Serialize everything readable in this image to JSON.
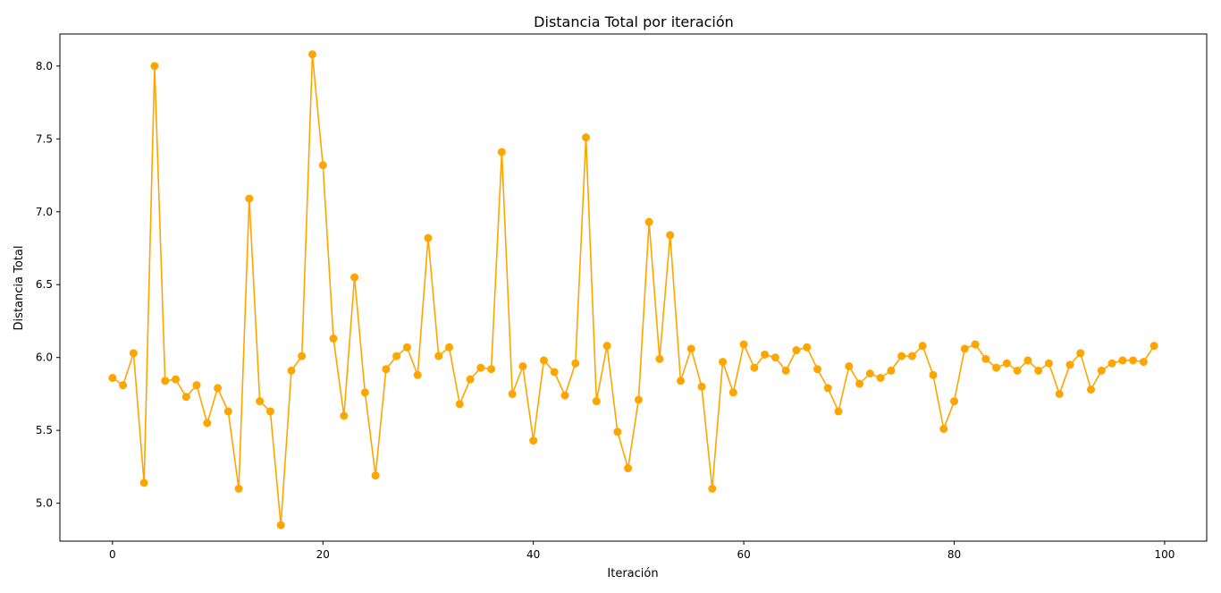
{
  "chart_data": {
    "type": "line",
    "title": "Distancia Total por iteración",
    "xlabel": "Iteración",
    "ylabel": "Distancia Total",
    "xlim": [
      -5,
      104
    ],
    "ylim": [
      4.74,
      8.22
    ],
    "xticks": [
      0,
      20,
      40,
      60,
      80,
      100
    ],
    "xtick_labels": [
      "0",
      "20",
      "40",
      "60",
      "80",
      "100"
    ],
    "yticks": [
      5.0,
      5.5,
      6.0,
      6.5,
      7.0,
      7.5,
      8.0
    ],
    "ytick_labels": [
      "5.0",
      "5.5",
      "6.0",
      "6.5",
      "7.0",
      "7.5",
      "8.0"
    ],
    "grid": false,
    "color": "#ffa500",
    "marker": "circle",
    "x": [
      0,
      1,
      2,
      3,
      4,
      5,
      6,
      7,
      8,
      9,
      10,
      11,
      12,
      13,
      14,
      15,
      16,
      17,
      18,
      19,
      20,
      21,
      22,
      23,
      24,
      25,
      26,
      27,
      28,
      29,
      30,
      31,
      32,
      33,
      34,
      35,
      36,
      37,
      38,
      39,
      40,
      41,
      42,
      43,
      44,
      45,
      46,
      47,
      48,
      49,
      50,
      51,
      52,
      53,
      54,
      55,
      56,
      57,
      58,
      59,
      60,
      61,
      62,
      63,
      64,
      65,
      66,
      67,
      68,
      69,
      70,
      71,
      72,
      73,
      74,
      75,
      76,
      77,
      78,
      79,
      80,
      81,
      82,
      83,
      84,
      85,
      86,
      87,
      88,
      89,
      90,
      91,
      92,
      93,
      94,
      95,
      96,
      97,
      98,
      99
    ],
    "y": [
      5.86,
      5.81,
      6.03,
      5.14,
      8.0,
      5.84,
      5.85,
      5.73,
      5.81,
      5.55,
      5.79,
      5.63,
      5.1,
      7.09,
      5.7,
      5.63,
      4.85,
      5.91,
      6.01,
      8.08,
      7.32,
      6.13,
      5.6,
      6.55,
      5.76,
      5.19,
      5.92,
      6.01,
      6.07,
      5.88,
      6.82,
      6.01,
      6.07,
      5.68,
      5.85,
      5.93,
      5.92,
      7.41,
      5.75,
      5.94,
      5.43,
      5.98,
      5.9,
      5.74,
      5.96,
      7.51,
      5.7,
      6.08,
      5.49,
      5.24,
      5.71,
      6.93,
      5.99,
      6.84,
      5.84,
      6.06,
      5.8,
      5.1,
      5.97,
      5.76,
      6.09,
      5.93,
      6.02,
      6.0,
      5.91,
      6.05,
      6.07,
      5.92,
      5.79,
      5.63,
      5.94,
      5.82,
      5.89,
      5.86,
      5.91,
      6.01,
      6.01,
      6.08,
      5.88,
      5.51,
      5.7,
      6.06,
      6.09,
      5.99,
      5.93,
      5.96,
      5.91,
      5.98,
      5.91,
      5.96,
      5.75,
      5.95,
      6.03,
      5.78,
      5.91,
      5.96,
      5.98,
      5.98,
      5.97,
      6.08
    ]
  }
}
